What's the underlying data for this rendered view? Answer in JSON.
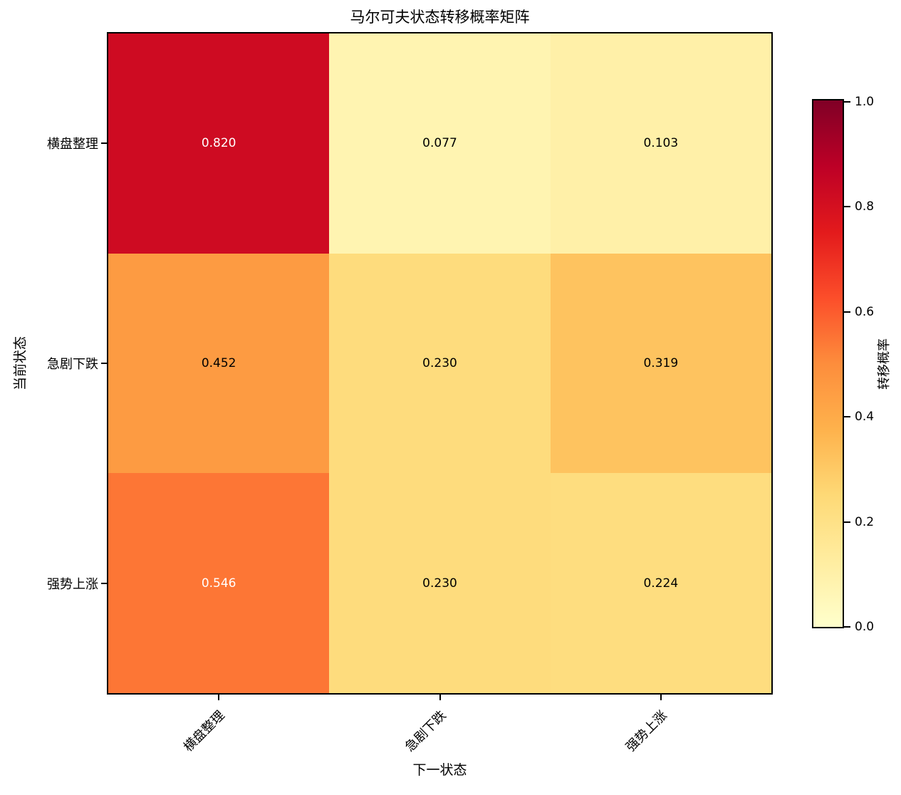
{
  "figure": {
    "background": "#ffffff",
    "axis_color": "#000000"
  },
  "chart_data": {
    "type": "heatmap",
    "title": "马尔可夫状态转移概率矩阵",
    "xlabel": "下一状态",
    "ylabel": "当前状态",
    "x_categories": [
      "横盘整理",
      "急剧下跌",
      "强势上涨"
    ],
    "y_categories": [
      "横盘整理",
      "急剧下跌",
      "强势上涨"
    ],
    "values": [
      [
        0.82,
        0.077,
        0.103
      ],
      [
        0.452,
        0.23,
        0.319
      ],
      [
        0.546,
        0.23,
        0.224
      ]
    ],
    "value_labels": [
      [
        "0.820",
        "0.077",
        "0.103"
      ],
      [
        "0.452",
        "0.230",
        "0.319"
      ],
      [
        "0.546",
        "0.230",
        "0.224"
      ]
    ],
    "cell_colors": [
      [
        "#ce0b22",
        "#fff4b1",
        "#fff0a8"
      ],
      [
        "#fd9b42",
        "#fedc7d",
        "#fec35f"
      ],
      [
        "#fd7635",
        "#fedc7d",
        "#fedd7f"
      ]
    ],
    "cell_text_colors": [
      [
        "#ffffff",
        "#000000",
        "#000000"
      ],
      [
        "#000000",
        "#000000",
        "#000000"
      ],
      [
        "#ffffff",
        "#000000",
        "#000000"
      ]
    ],
    "colormap": "YlOrRd",
    "colormap_stops": [
      "#ffffcc",
      "#ffeda0",
      "#fed976",
      "#feb24c",
      "#fd8d3c",
      "#fc4e2a",
      "#e31a1c",
      "#bd0026",
      "#800026"
    ],
    "colorbar": {
      "label": "转移概率",
      "tick_labels": [
        "1.0",
        "0.8",
        "0.6",
        "0.4",
        "0.2",
        "0.0"
      ],
      "vmin": 0.0,
      "vmax": 1.0
    },
    "grid": false
  }
}
